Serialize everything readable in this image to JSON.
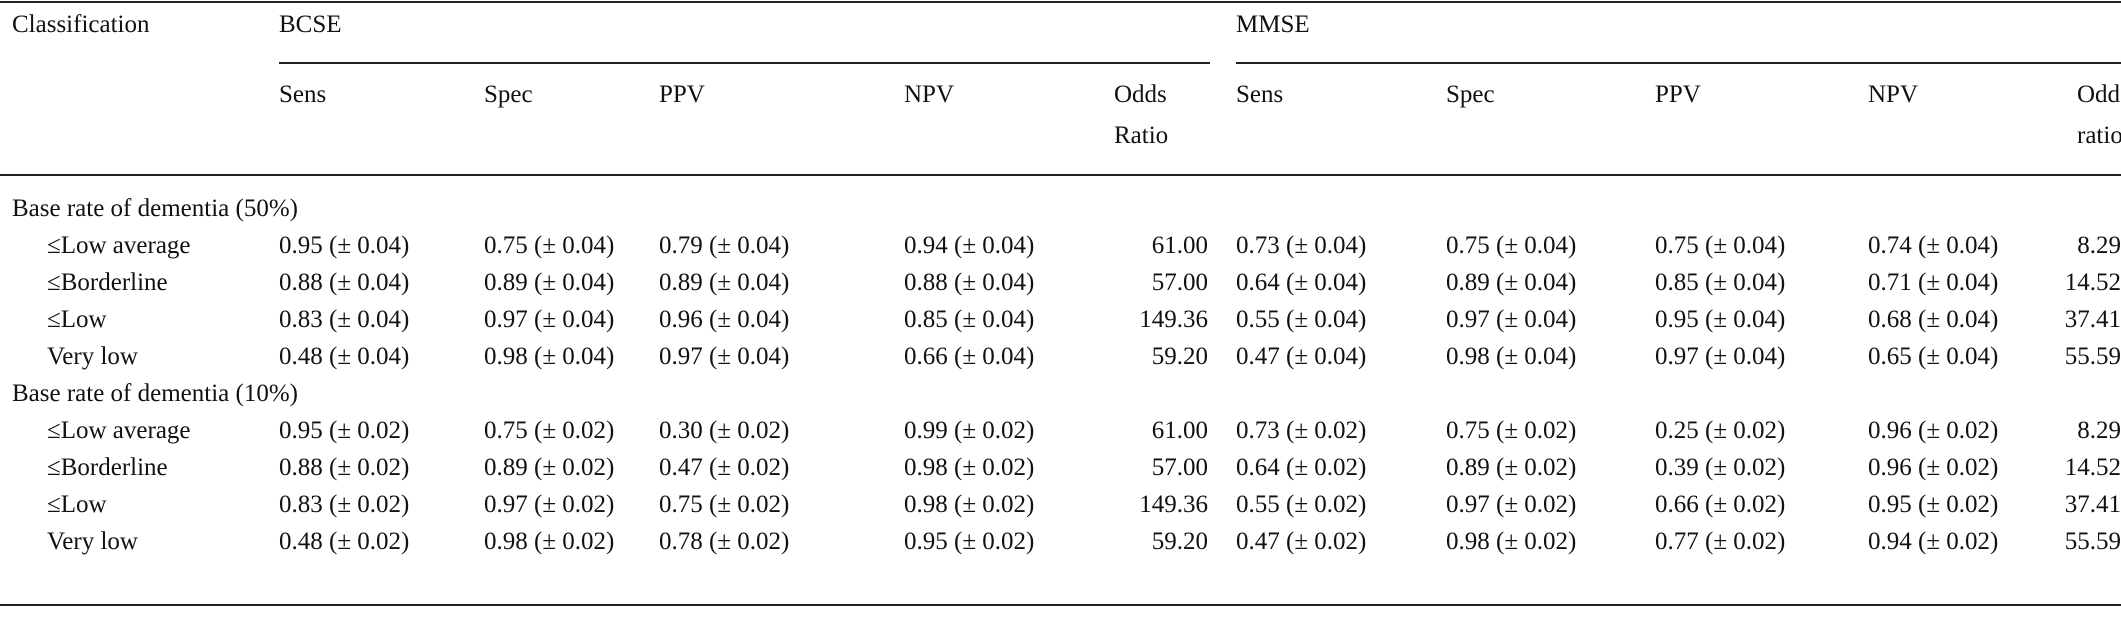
{
  "table": {
    "stub_header": "Classification",
    "groups": [
      {
        "name": "BCSE",
        "headers": [
          "Sens",
          "Spec",
          "PPV",
          "NPV",
          "Odds Ratio"
        ]
      },
      {
        "name": "MMSE",
        "headers": [
          "Sens",
          "Spec",
          "PPV",
          "NPV",
          "Odds ratio"
        ]
      }
    ],
    "sections": [
      {
        "title": "Base rate of dementia (50%)",
        "rows": [
          {
            "label": "≤Low average",
            "bcse": [
              "0.95 (± 0.04)",
              "0.75 (± 0.04)",
              "0.79 (± 0.04)",
              "0.94 (± 0.04)",
              "61.00"
            ],
            "mmse": [
              "0.73 (± 0.04)",
              "0.75 (± 0.04)",
              "0.75 (± 0.04)",
              "0.74 (± 0.04)",
              "8.29"
            ]
          },
          {
            "label": "≤Borderline",
            "bcse": [
              "0.88 (± 0.04)",
              "0.89 (± 0.04)",
              "0.89 (± 0.04)",
              "0.88 (± 0.04)",
              "57.00"
            ],
            "mmse": [
              "0.64 (± 0.04)",
              "0.89 (± 0.04)",
              "0.85 (± 0.04)",
              "0.71 (± 0.04)",
              "14.52"
            ]
          },
          {
            "label": "≤Low",
            "bcse": [
              "0.83 (± 0.04)",
              "0.97 (± 0.04)",
              "0.96 (± 0.04)",
              "0.85 (± 0.04)",
              "149.36"
            ],
            "mmse": [
              "0.55 (± 0.04)",
              "0.97 (± 0.04)",
              "0.95 (± 0.04)",
              "0.68 (± 0.04)",
              "37.41"
            ]
          },
          {
            "label": "Very low",
            "bcse": [
              "0.48 (± 0.04)",
              "0.98 (± 0.04)",
              "0.97 (± 0.04)",
              "0.66 (± 0.04)",
              "59.20"
            ],
            "mmse": [
              "0.47 (± 0.04)",
              "0.98 (± 0.04)",
              "0.97 (± 0.04)",
              "0.65 (± 0.04)",
              "55.59"
            ]
          }
        ]
      },
      {
        "title": "Base rate of dementia (10%)",
        "rows": [
          {
            "label": "≤Low average",
            "bcse": [
              "0.95 (± 0.02)",
              "0.75 (± 0.02)",
              "0.30 (± 0.02)",
              "0.99 (± 0.02)",
              "61.00"
            ],
            "mmse": [
              "0.73 (± 0.02)",
              "0.75 (± 0.02)",
              "0.25 (± 0.02)",
              "0.96 (± 0.02)",
              "8.29"
            ]
          },
          {
            "label": "≤Borderline",
            "bcse": [
              "0.88 (± 0.02)",
              "0.89 (± 0.02)",
              "0.47 (± 0.02)",
              "0.98 (± 0.02)",
              "57.00"
            ],
            "mmse": [
              "0.64 (± 0.02)",
              "0.89 (± 0.02)",
              "0.39 (± 0.02)",
              "0.96 (± 0.02)",
              "14.52"
            ]
          },
          {
            "label": "≤Low",
            "bcse": [
              "0.83 (± 0.02)",
              "0.97 (± 0.02)",
              "0.75 (± 0.02)",
              "0.98 (± 0.02)",
              "149.36"
            ],
            "mmse": [
              "0.55 (± 0.02)",
              "0.97 (± 0.02)",
              "0.66 (± 0.02)",
              "0.95 (± 0.02)",
              "37.41"
            ]
          },
          {
            "label": "Very low",
            "bcse": [
              "0.48 (± 0.02)",
              "0.98 (± 0.02)",
              "0.78 (± 0.02)",
              "0.95 (± 0.02)",
              "59.20"
            ],
            "mmse": [
              "0.47 (± 0.02)",
              "0.98 (± 0.02)",
              "0.77 (± 0.02)",
              "0.94 (± 0.02)",
              "55.59"
            ]
          }
        ]
      }
    ]
  }
}
